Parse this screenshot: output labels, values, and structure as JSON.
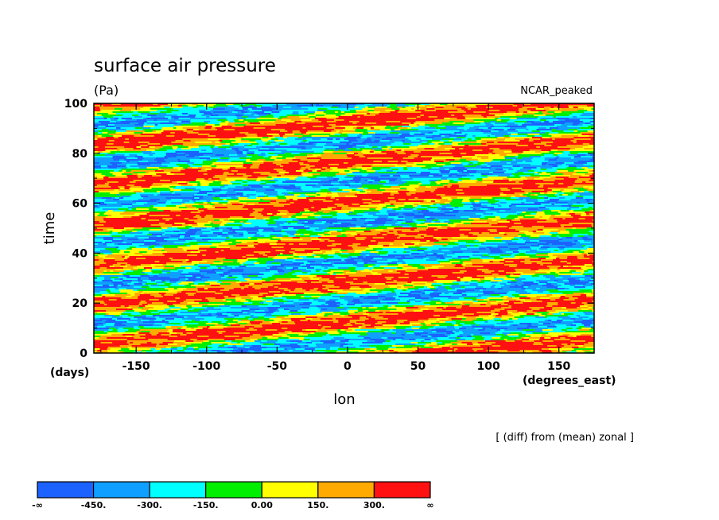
{
  "chart_data": {
    "type": "heatmap",
    "title": "surface air pressure",
    "units": "(Pa)",
    "model_label": "NCAR_peaked",
    "note": "[ (diff) from (mean) zonal ]",
    "xlabel": "lon",
    "ylabel": "time",
    "x_units": "(degrees_east)",
    "y_units": "(days)",
    "xlim": [
      -180,
      175
    ],
    "ylim": [
      0,
      100
    ],
    "x_ticks": [
      -150,
      -100,
      -50,
      0,
      50,
      100,
      150
    ],
    "y_ticks": [
      0,
      20,
      40,
      60,
      80,
      100
    ],
    "colorbar": {
      "levels": [
        -450,
        -300,
        -150,
        0,
        150,
        300
      ],
      "labels": [
        "-∞",
        "-450.",
        "-300.",
        "-150.",
        "0.00",
        "150.",
        "300.",
        "∞"
      ],
      "colors": [
        "#1c62ff",
        "#0fa0ff",
        "#00ffff",
        "#00ee00",
        "#ffff00",
        "#ffaa00",
        "#ff1111"
      ]
    },
    "wave_bands": [
      {
        "name": "red-ridge",
        "points": [
          [
            -180,
            68
          ],
          [
            175,
            86
          ]
        ]
      },
      {
        "name": "red-ridge",
        "points": [
          [
            -180,
            52
          ],
          [
            175,
            68
          ]
        ]
      },
      {
        "name": "red-ridge",
        "points": [
          [
            -180,
            36
          ],
          [
            175,
            52
          ]
        ]
      },
      {
        "name": "red-ridge",
        "points": [
          [
            -180,
            20
          ],
          [
            175,
            36
          ]
        ]
      },
      {
        "name": "red-ridge",
        "points": [
          [
            -180,
            4
          ],
          [
            175,
            20
          ]
        ]
      },
      {
        "name": "red-ridge",
        "points": [
          [
            -180,
            84
          ],
          [
            175,
            102
          ]
        ]
      }
    ]
  }
}
